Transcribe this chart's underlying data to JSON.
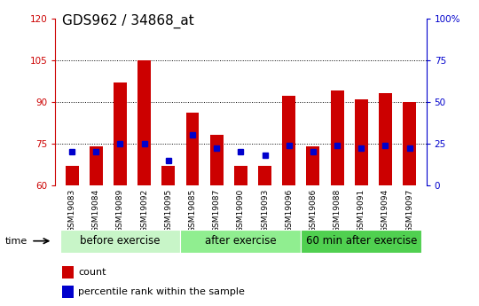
{
  "title": "GDS962 / 34868_at",
  "samples": [
    "GSM19083",
    "GSM19084",
    "GSM19089",
    "GSM19092",
    "GSM19095",
    "GSM19085",
    "GSM19087",
    "GSM19090",
    "GSM19093",
    "GSM19096",
    "GSM19086",
    "GSM19088",
    "GSM19091",
    "GSM19094",
    "GSM19097"
  ],
  "count_values": [
    67,
    74,
    97,
    105,
    67,
    86,
    78,
    67,
    67,
    92,
    74,
    94,
    91,
    93,
    90
  ],
  "percentile_values": [
    20,
    20,
    25,
    25,
    15,
    30,
    22,
    20,
    18,
    24,
    20,
    24,
    22,
    24,
    22
  ],
  "groups": [
    {
      "label": "before exercise",
      "start": 0,
      "end": 5,
      "color": "#c8f5c8"
    },
    {
      "label": "after exercise",
      "start": 5,
      "end": 10,
      "color": "#90ee90"
    },
    {
      "label": "60 min after exercise",
      "start": 10,
      "end": 15,
      "color": "#50d050"
    }
  ],
  "ymin": 60,
  "ymax": 120,
  "yticks": [
    60,
    75,
    90,
    105,
    120
  ],
  "y2min": 0,
  "y2max": 100,
  "y2ticks": [
    0,
    25,
    50,
    75,
    100
  ],
  "bar_color": "#cc0000",
  "percentile_color": "#0000cc",
  "bar_width": 0.55,
  "tick_label_color": "#cc0000",
  "right_tick_color": "#0000cc",
  "xticklabel_bg": "#d8d8d8",
  "group_label_fontsize": 8.5,
  "title_fontsize": 11
}
